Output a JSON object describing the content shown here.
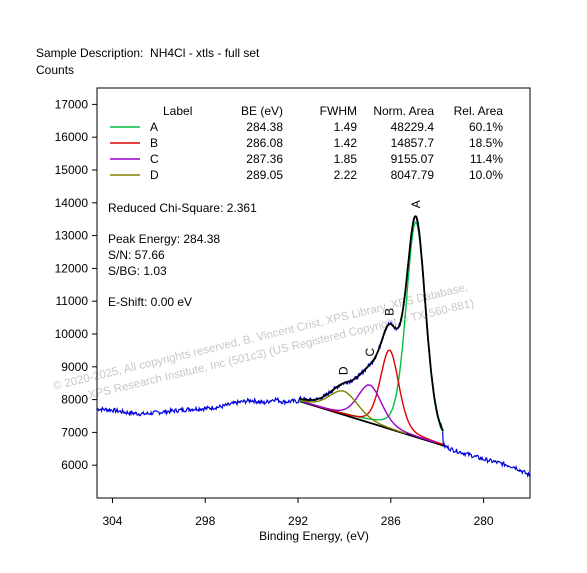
{
  "header": {
    "sample_description": "Sample Description:  NH4Cl - xtls - full set",
    "y_units": "Counts"
  },
  "peak_table": {
    "headers": [
      "Label",
      "BE (eV)",
      "FWHM",
      "Norm. Area",
      "Rel. Area"
    ],
    "rows": [
      {
        "label": "A",
        "be": "284.38",
        "fwhm": "1.49",
        "norm_area": "48229.4",
        "rel_area": "60.1%",
        "color": "#00c040"
      },
      {
        "label": "B",
        "be": "286.08",
        "fwhm": "1.42",
        "norm_area": "14857.7",
        "rel_area": "18.5%",
        "color": "#dd0000"
      },
      {
        "label": "C",
        "be": "287.36",
        "fwhm": "1.85",
        "norm_area": "9155.07",
        "rel_area": "11.4%",
        "color": "#9900cc"
      },
      {
        "label": "D",
        "be": "289.05",
        "fwhm": "2.22",
        "norm_area": "8047.79",
        "rel_area": "10.0%",
        "color": "#808000"
      }
    ]
  },
  "stats": {
    "chi_square": "Reduced Chi-Square: 2.361",
    "peak_energy": "Peak Energy: 284.38",
    "sn": "S/N: 57.66",
    "sbg": "S/BG: 1.03",
    "eshift": "E-Shift: 0.00 eV"
  },
  "watermark": {
    "line1": "© 2020-2025,   All copyrights reserved,   B. Vincent Crist,  XPS Library, XPS Database,",
    "line2": "XPS Research Institute, Inc (501c3)   (US Registered Copyright © TX-560-881)"
  },
  "chart_data": {
    "type": "line",
    "title": "",
    "xlabel": "Binding Energy, (eV)",
    "ylabel": "Counts",
    "x_reversed": true,
    "xlim": [
      305,
      277
    ],
    "ylim": [
      5000,
      17500
    ],
    "x_ticks": [
      304,
      298,
      292,
      286,
      280
    ],
    "y_ticks": [
      6000,
      7000,
      8000,
      9000,
      10000,
      11000,
      12000,
      13000,
      14000,
      15000,
      16000,
      17000
    ],
    "background": {
      "x": [
        291.9,
        282.6
      ],
      "y": [
        7950,
        6600
      ]
    },
    "raw_data_color": "#0000dd",
    "envelope_color": "#000000",
    "peaks": [
      {
        "label": "A",
        "center": 284.38,
        "fwhm": 1.49,
        "height": 6550
      },
      {
        "label": "B",
        "center": 286.08,
        "fwhm": 1.42,
        "height": 2400
      },
      {
        "label": "C",
        "center": 287.36,
        "fwhm": 1.85,
        "height": 1150
      },
      {
        "label": "D",
        "center": 289.05,
        "fwhm": 2.22,
        "height": 720
      }
    ],
    "raw_anchors": [
      [
        305.0,
        7720
      ],
      [
        304.0,
        7680
      ],
      [
        303.0,
        7600
      ],
      [
        302.0,
        7560
      ],
      [
        301.0,
        7610
      ],
      [
        300.0,
        7660
      ],
      [
        299.0,
        7710
      ],
      [
        298.0,
        7730
      ],
      [
        297.0,
        7780
      ],
      [
        296.0,
        7900
      ],
      [
        295.0,
        7980
      ],
      [
        294.2,
        7900
      ],
      [
        293.5,
        8020
      ],
      [
        293.0,
        7930
      ],
      [
        292.4,
        7950
      ],
      [
        291.9,
        7950
      ],
      [
        282.6,
        6600
      ],
      [
        282.0,
        6470
      ],
      [
        281.0,
        6330
      ],
      [
        280.0,
        6180
      ],
      [
        279.0,
        6070
      ],
      [
        278.0,
        5950
      ],
      [
        277.0,
        5680
      ]
    ]
  }
}
